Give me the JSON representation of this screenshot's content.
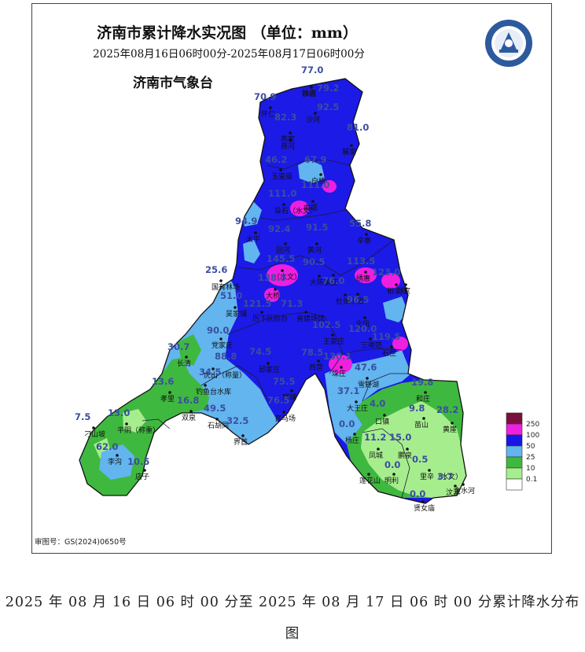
{
  "title": "济南市累计降水实况图 （单位：mm）",
  "time_range": "2025年08月16日06时00分-2025年08月17日06时00分",
  "agency": "济南市气象台",
  "approval_no": "审图号：GS(2024)0650号",
  "caption_line1": "2025 年 08 月 16 日 06 时 00 分至 2025 年 08 月 17 日 06 时 00 分累计降水分布",
  "caption_line2": "图",
  "legend": {
    "levels": [
      "250",
      "100",
      "50",
      "25",
      "10",
      "0.1"
    ],
    "colors": [
      "#7a0f3e",
      "#ef1fe0",
      "#1616e6",
      "#62b5ef",
      "#3fb83f",
      "#a6ee8d",
      "#ffffff"
    ]
  },
  "stations": [
    {
      "name": "韩庙",
      "value": "77.0"
    },
    {
      "name": "沙河",
      "value": "79.2"
    },
    {
      "name": "怀仁",
      "value": "70.9"
    },
    {
      "name": "沙河",
      "value": "92.5"
    },
    {
      "name": "燕家",
      "value": "82.3"
    },
    {
      "name": "商河",
      "value": ""
    },
    {
      "name": "展家",
      "value": "81.0"
    },
    {
      "name": "玉皇庙",
      "value": "46.2"
    },
    {
      "name": "白桥",
      "value": "67.9"
    },
    {
      "name": "垛石（水文）",
      "value": "111.0"
    },
    {
      "name": "曲堤",
      "value": "111.0"
    },
    {
      "name": "太平",
      "value": "94.9"
    },
    {
      "name": "回河",
      "value": "92.4"
    },
    {
      "name": "黄河",
      "value": "91.5"
    },
    {
      "name": "辛寨",
      "value": "55.8"
    },
    {
      "name": "（水文）",
      "value": "145.5"
    },
    {
      "name": "大陈家庄",
      "value": "90.5"
    },
    {
      "name": "",
      "value": "76.0"
    },
    {
      "name": "绣惠",
      "value": "113.5"
    },
    {
      "name": "相公庄",
      "value": "123.0"
    },
    {
      "name": "孙家",
      "value": ""
    },
    {
      "name": "国有林场",
      "value": "25.6"
    },
    {
      "name": "大桥",
      "value": "138.5"
    },
    {
      "name": "杜张水库",
      "value": ""
    },
    {
      "name": "",
      "value": "96.5"
    },
    {
      "name": "吴家铺",
      "value": "51.0"
    },
    {
      "name": "历下区防办",
      "value": "121.5"
    },
    {
      "name": "省建场馆",
      "value": "71.3"
    },
    {
      "name": "北凤",
      "value": ""
    },
    {
      "name": "王家庄",
      "value": "102.5"
    },
    {
      "name": "三德范",
      "value": "120.0"
    },
    {
      "name": "石匣",
      "value": "119.5"
    },
    {
      "name": "党家庄",
      "value": "90.0"
    },
    {
      "name": "长清",
      "value": "30.7"
    },
    {
      "name": "虎山（称量）",
      "value": "88.8"
    },
    {
      "name": "邱家庄",
      "value": "74.5"
    },
    {
      "name": "西营",
      "value": "78.5"
    },
    {
      "name": "垛庄",
      "value": "130.1"
    },
    {
      "name": "雪野湖",
      "value": "47.6"
    },
    {
      "name": "和庄",
      "value": "19.8"
    },
    {
      "name": "钓鱼台水库",
      "value": "34.5"
    },
    {
      "name": "窝铺",
      "value": "75.5"
    },
    {
      "name": "大王庄",
      "value": "37.1"
    },
    {
      "name": "孝里",
      "value": "13.6"
    },
    {
      "name": "双泉",
      "value": "16.8"
    },
    {
      "name": "官马场",
      "value": "76.5"
    },
    {
      "name": "口镇",
      "value": "4.0"
    },
    {
      "name": "苗山",
      "value": "9.8"
    },
    {
      "name": "黄崖",
      "value": "28.2"
    },
    {
      "name": "石胡同",
      "value": "49.5"
    },
    {
      "name": "界首",
      "value": "32.5"
    },
    {
      "name": "平阴（称重）",
      "value": "13.0"
    },
    {
      "name": "刁山坡",
      "value": "7.5"
    },
    {
      "name": "杨庄",
      "value": "0.0"
    },
    {
      "name": "凤城",
      "value": "11.2"
    },
    {
      "name": "鹏泉",
      "value": "15.0"
    },
    {
      "name": "李沟",
      "value": "62.0"
    },
    {
      "name": "店子",
      "value": "10.5"
    },
    {
      "name": "明利",
      "value": "0.0"
    },
    {
      "name": "莲花山",
      "value": ""
    },
    {
      "name": "里辛（水文）",
      "value": "0.5"
    },
    {
      "name": "汶源",
      "value": "3.7"
    },
    {
      "name": "金水河",
      "value": ""
    },
    {
      "name": "贤女庙",
      "value": "0.0"
    }
  ]
}
